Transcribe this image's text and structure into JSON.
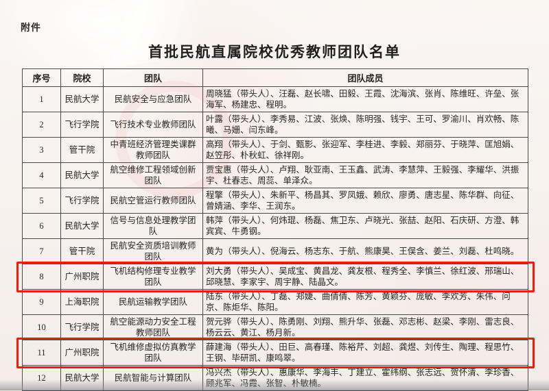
{
  "page": {
    "attachment_label": "附件",
    "title": "首批民航直属院校优秀教师团队名单",
    "highlight_color": "#dd2314"
  },
  "table": {
    "headers": [
      "序号",
      "院校",
      "团队",
      "团队成员"
    ],
    "rows": [
      {
        "no": "1",
        "school": "民航大学",
        "team": "民航安全与应急团队",
        "members": "周晓猛（带头人）、汪磊、赵长啸、田毅、王霞、沈海滨、张肖、陈维旺、许垒、张海军、杨建忠、程明。",
        "highlighted": false
      },
      {
        "no": "2",
        "school": "飞行学院",
        "team": "飞行技术专业教师团队",
        "members": "叶露（带头人）、李秀易、江波、张焕、陈明强、钱宇、王可、罗渝川、肖欢畅、陈曦、马姗、闫东峰。",
        "highlighted": false
      },
      {
        "no": "3",
        "school": "管干院",
        "team": "中青班经济管理类课群教师团队",
        "members": "高翔（带头人）、于剑、甄影、张迎军、李桂进、李毅、郑丽芬、于晓萍、匡旭娟、赵笠彤、朴秋虹、徐祥刚。",
        "highlighted": false
      },
      {
        "no": "4",
        "school": "民航大学",
        "team": "航空维修工程领域创新团队",
        "members": "贾宝惠（带头人）、卢翔、耿亚南、王玉鑫、武涛、李慧萍、王毅强、李耀华、洪振宇、杜春志、周蕊、单泽众。",
        "highlighted": false
      },
      {
        "no": "5",
        "school": "飞行学院",
        "team": "民航空管运行教师团队",
        "members": "程擎（带头人）、朱新平、杨昌其、罗凤娥、赖欣、廖勇、唐志星、陈华群、向征、曾婧涵、李华、王润东。",
        "highlighted": false
      },
      {
        "no": "6",
        "school": "民航大学",
        "team": "信号与信息处理教学团队",
        "members": "韩萍（带头人）、何炜琨、杨磊、焦卫东、卢晓光、张喆、赵阳、石庆研、方澄、韩宾宾、牛勇钢。",
        "highlighted": false
      },
      {
        "no": "7",
        "school": "管干院",
        "team": "民航安全资质培训教师团队",
        "members": "黄为（带头人）、倪海云、杨志东、于航、熊康昊、王俣含、姜兰、刘磊、杜鸣晓。",
        "highlighted": false
      },
      {
        "no": "8",
        "school": "广州职院",
        "team": "飞机结构修理专业教学团队",
        "members": "刘大勇（带头人）、吴成宝、黄昌龙、龚友根、程秀全、李慎兰、徐红波、邢瑞山、邱晓慧、李家宇、周宇静、陆晶文。",
        "highlighted": true
      },
      {
        "no": "9",
        "school": "上海职院",
        "team": "民航运输教学团队",
        "members": "陆东（带头人）、丁磊、郑婕、曲倩倩、陈芳、黄颖芬、庞敏、李欢芳、朱伟、问京、陈炬华、陈阳。",
        "highlighted": false
      },
      {
        "no": "10",
        "school": "飞行学院",
        "team": "航空能源动力安全工程教师团队",
        "members": "贺元骅（带头人）、陈勇刚、刘翔、熊升华、张磊、邓志彬、赵梁、李刚、雷志良、杨云云、黄江、杨月新。",
        "highlighted": false
      },
      {
        "no": "11",
        "school": "广州职院",
        "team": "飞机维修虚拟仿真教学团队",
        "members": "薛建海（带头人）、田巨、高春瑾、陈裕芹、刘超、龚煜、刘传生、陶理、程思竹、王钢、毕研凯、康鸣翠。",
        "highlighted": true
      },
      {
        "no": "12",
        "school": "民航大学",
        "team": "民航智能与计算团队",
        "members": "冯兴杰（带头人）、惠康华、李海丰、丁建立、霍纬纲、张志远、贺怀清、李珍香、顾兆军、冯霞、张智、朴敏楠。",
        "highlighted": false
      }
    ]
  }
}
